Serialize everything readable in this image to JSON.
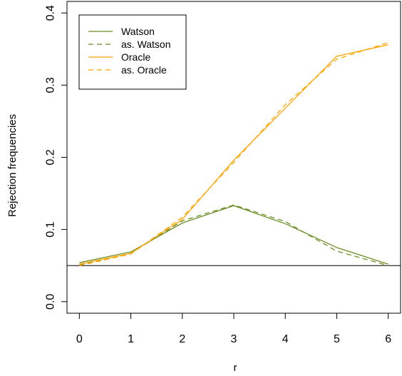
{
  "chart_data": {
    "type": "line",
    "xlabel": "r",
    "ylabel": "Rejection frequencies",
    "xlim": [
      -0.24,
      6.24
    ],
    "ylim": [
      -0.016,
      0.416
    ],
    "x_ticks": [
      0,
      1,
      2,
      3,
      4,
      5,
      6
    ],
    "x_tick_labels": [
      "0",
      "1",
      "2",
      "3",
      "4",
      "5",
      "6"
    ],
    "y_ticks": [
      0.0,
      0.1,
      0.2,
      0.3,
      0.4
    ],
    "y_tick_labels": [
      "0.0",
      "0.1",
      "0.2",
      "0.3",
      "0.4"
    ],
    "reference_line": 0.05,
    "legend_position": "top-left",
    "grid": false,
    "x": [
      0,
      1,
      2,
      3,
      4,
      5,
      6
    ],
    "series": [
      {
        "name": "Watson",
        "color": "#6b8e23",
        "dash": "solid",
        "values": [
          0.054,
          0.069,
          0.109,
          0.133,
          0.108,
          0.075,
          0.052
        ]
      },
      {
        "name": "as. Watson",
        "color": "#6b8e23",
        "dash": "dashed",
        "values": [
          0.051,
          0.067,
          0.112,
          0.134,
          0.111,
          0.07,
          0.05
        ]
      },
      {
        "name": "Oracle",
        "color": "#ffa500",
        "dash": "solid",
        "values": [
          0.052,
          0.067,
          0.114,
          0.196,
          0.268,
          0.34,
          0.356
        ]
      },
      {
        "name": "as. Oracle",
        "color": "#ffa500",
        "dash": "dashed",
        "values": [
          0.05,
          0.066,
          0.117,
          0.193,
          0.273,
          0.336,
          0.359
        ]
      }
    ]
  }
}
